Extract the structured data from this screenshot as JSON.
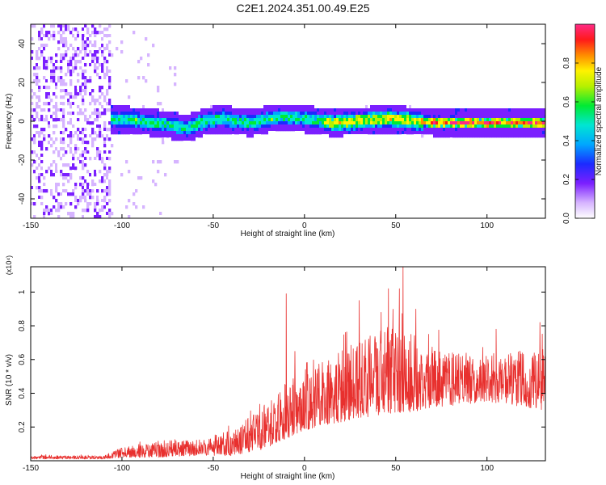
{
  "figure": {
    "title": "C2E1.2024.351.00.49.E25"
  },
  "chart_data": [
    {
      "type": "heatmap",
      "name": "spectrogram",
      "title": "C2E1.2024.351.00.49.E25",
      "xlabel": "Height of straight line (km)",
      "ylabel": "Frequency (Hz)",
      "xlim": [
        -150,
        132
      ],
      "ylim": [
        -50,
        50
      ],
      "x_ticks": [
        -150,
        -100,
        -50,
        0,
        50,
        100
      ],
      "y_ticks": [
        -40,
        -20,
        0,
        20,
        40
      ],
      "grid": false,
      "colorbar": {
        "label": "Normalized spectral amplitude",
        "range": [
          0,
          1
        ],
        "ticks": [
          0.0,
          0.2,
          0.4,
          0.6,
          0.8
        ],
        "colormap": "rainbow (white-violet-blue-cyan-green-yellow-red-magenta)"
      },
      "features": {
        "noise_region_x": [
          -150,
          -107
        ],
        "signal_band_start_x": -107,
        "signal_center_hz": [
          {
            "x": -107,
            "hz": 2
          },
          {
            "x": -90,
            "hz": 1
          },
          {
            "x": -75,
            "hz": -1
          },
          {
            "x": -65,
            "hz": -3
          },
          {
            "x": -55,
            "hz": 1
          },
          {
            "x": -45,
            "hz": 2
          },
          {
            "x": -30,
            "hz": 0
          },
          {
            "x": -15,
            "hz": 3
          },
          {
            "x": 0,
            "hz": 2
          },
          {
            "x": 15,
            "hz": 0
          },
          {
            "x": 30,
            "hz": 1
          },
          {
            "x": 45,
            "hz": 2
          },
          {
            "x": 60,
            "hz": 1
          },
          {
            "x": 75,
            "hz": 0
          },
          {
            "x": 100,
            "hz": 0
          },
          {
            "x": 132,
            "hz": 0
          }
        ]
      }
    },
    {
      "type": "line",
      "name": "snr",
      "xlabel": "Height of straight line (km)",
      "ylabel": "SNR (10 * v/v)",
      "y_scale_label": "(x10⁴)",
      "xlim": [
        -150,
        132
      ],
      "ylim": [
        0,
        1.15
      ],
      "x_ticks": [
        -150,
        -100,
        -50,
        0,
        50,
        100
      ],
      "y_ticks": [
        0.2,
        0.4,
        0.6,
        0.8,
        1.0
      ],
      "grid": false,
      "series": [
        {
          "color": "#e8302e",
          "envelope": [
            {
              "x": -150,
              "lo": 0.01,
              "hi": 0.03
            },
            {
              "x": -110,
              "lo": 0.01,
              "hi": 0.03
            },
            {
              "x": -100,
              "lo": 0.02,
              "hi": 0.08
            },
            {
              "x": -80,
              "lo": 0.02,
              "hi": 0.12
            },
            {
              "x": -60,
              "lo": 0.03,
              "hi": 0.12
            },
            {
              "x": -40,
              "lo": 0.03,
              "hi": 0.18
            },
            {
              "x": -25,
              "lo": 0.06,
              "hi": 0.3
            },
            {
              "x": -15,
              "lo": 0.1,
              "hi": 0.42
            },
            {
              "x": 0,
              "lo": 0.18,
              "hi": 0.58
            },
            {
              "x": 15,
              "lo": 0.22,
              "hi": 0.65
            },
            {
              "x": 30,
              "lo": 0.25,
              "hi": 0.7
            },
            {
              "x": 45,
              "lo": 0.28,
              "hi": 0.8
            },
            {
              "x": 60,
              "lo": 0.28,
              "hi": 0.75
            },
            {
              "x": 75,
              "lo": 0.32,
              "hi": 0.65
            },
            {
              "x": 100,
              "lo": 0.35,
              "hi": 0.62
            },
            {
              "x": 132,
              "lo": 0.3,
              "hi": 0.68
            }
          ],
          "spikes": [
            {
              "x": -10,
              "y": 0.99
            },
            {
              "x": 30,
              "y": 0.95
            },
            {
              "x": 42,
              "y": 0.88
            },
            {
              "x": 46,
              "y": 1.02
            },
            {
              "x": 52,
              "y": 1.02
            },
            {
              "x": 54,
              "y": 1.15
            },
            {
              "x": 68,
              "y": 0.75
            },
            {
              "x": 105,
              "y": 0.78
            },
            {
              "x": 129,
              "y": 0.82
            }
          ]
        }
      ]
    }
  ]
}
